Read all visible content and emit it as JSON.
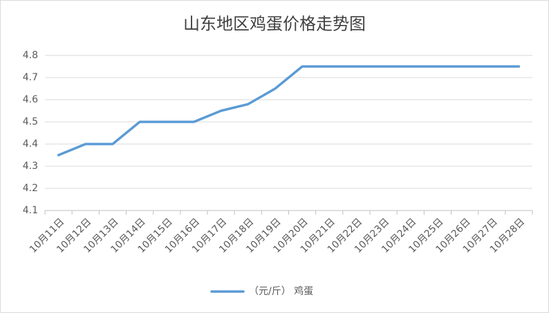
{
  "chart_data": {
    "type": "line",
    "title": "山东地区鸡蛋价格走势图",
    "categories": [
      "10月11日",
      "10月12日",
      "10月13日",
      "10月14日",
      "10月15日",
      "10月16日",
      "10月17日",
      "10月18日",
      "10月19日",
      "10月20日",
      "10月21日",
      "10月22日",
      "10月23日",
      "10月24日",
      "10月25日",
      "10月26日",
      "10月27日",
      "10月28日"
    ],
    "series": [
      {
        "name": "（元/斤） 鸡蛋",
        "color": "#5b9bd5",
        "values": [
          4.35,
          4.4,
          4.4,
          4.5,
          4.5,
          4.5,
          4.55,
          4.58,
          4.65,
          4.75,
          4.75,
          4.75,
          4.75,
          4.75,
          4.75,
          4.75,
          4.75,
          4.75
        ]
      }
    ],
    "ylim": [
      4.1,
      4.8
    ],
    "yticks": [
      4.1,
      4.2,
      4.3,
      4.4,
      4.5,
      4.6,
      4.7,
      4.8
    ],
    "grid": true,
    "legend": "bottom"
  }
}
